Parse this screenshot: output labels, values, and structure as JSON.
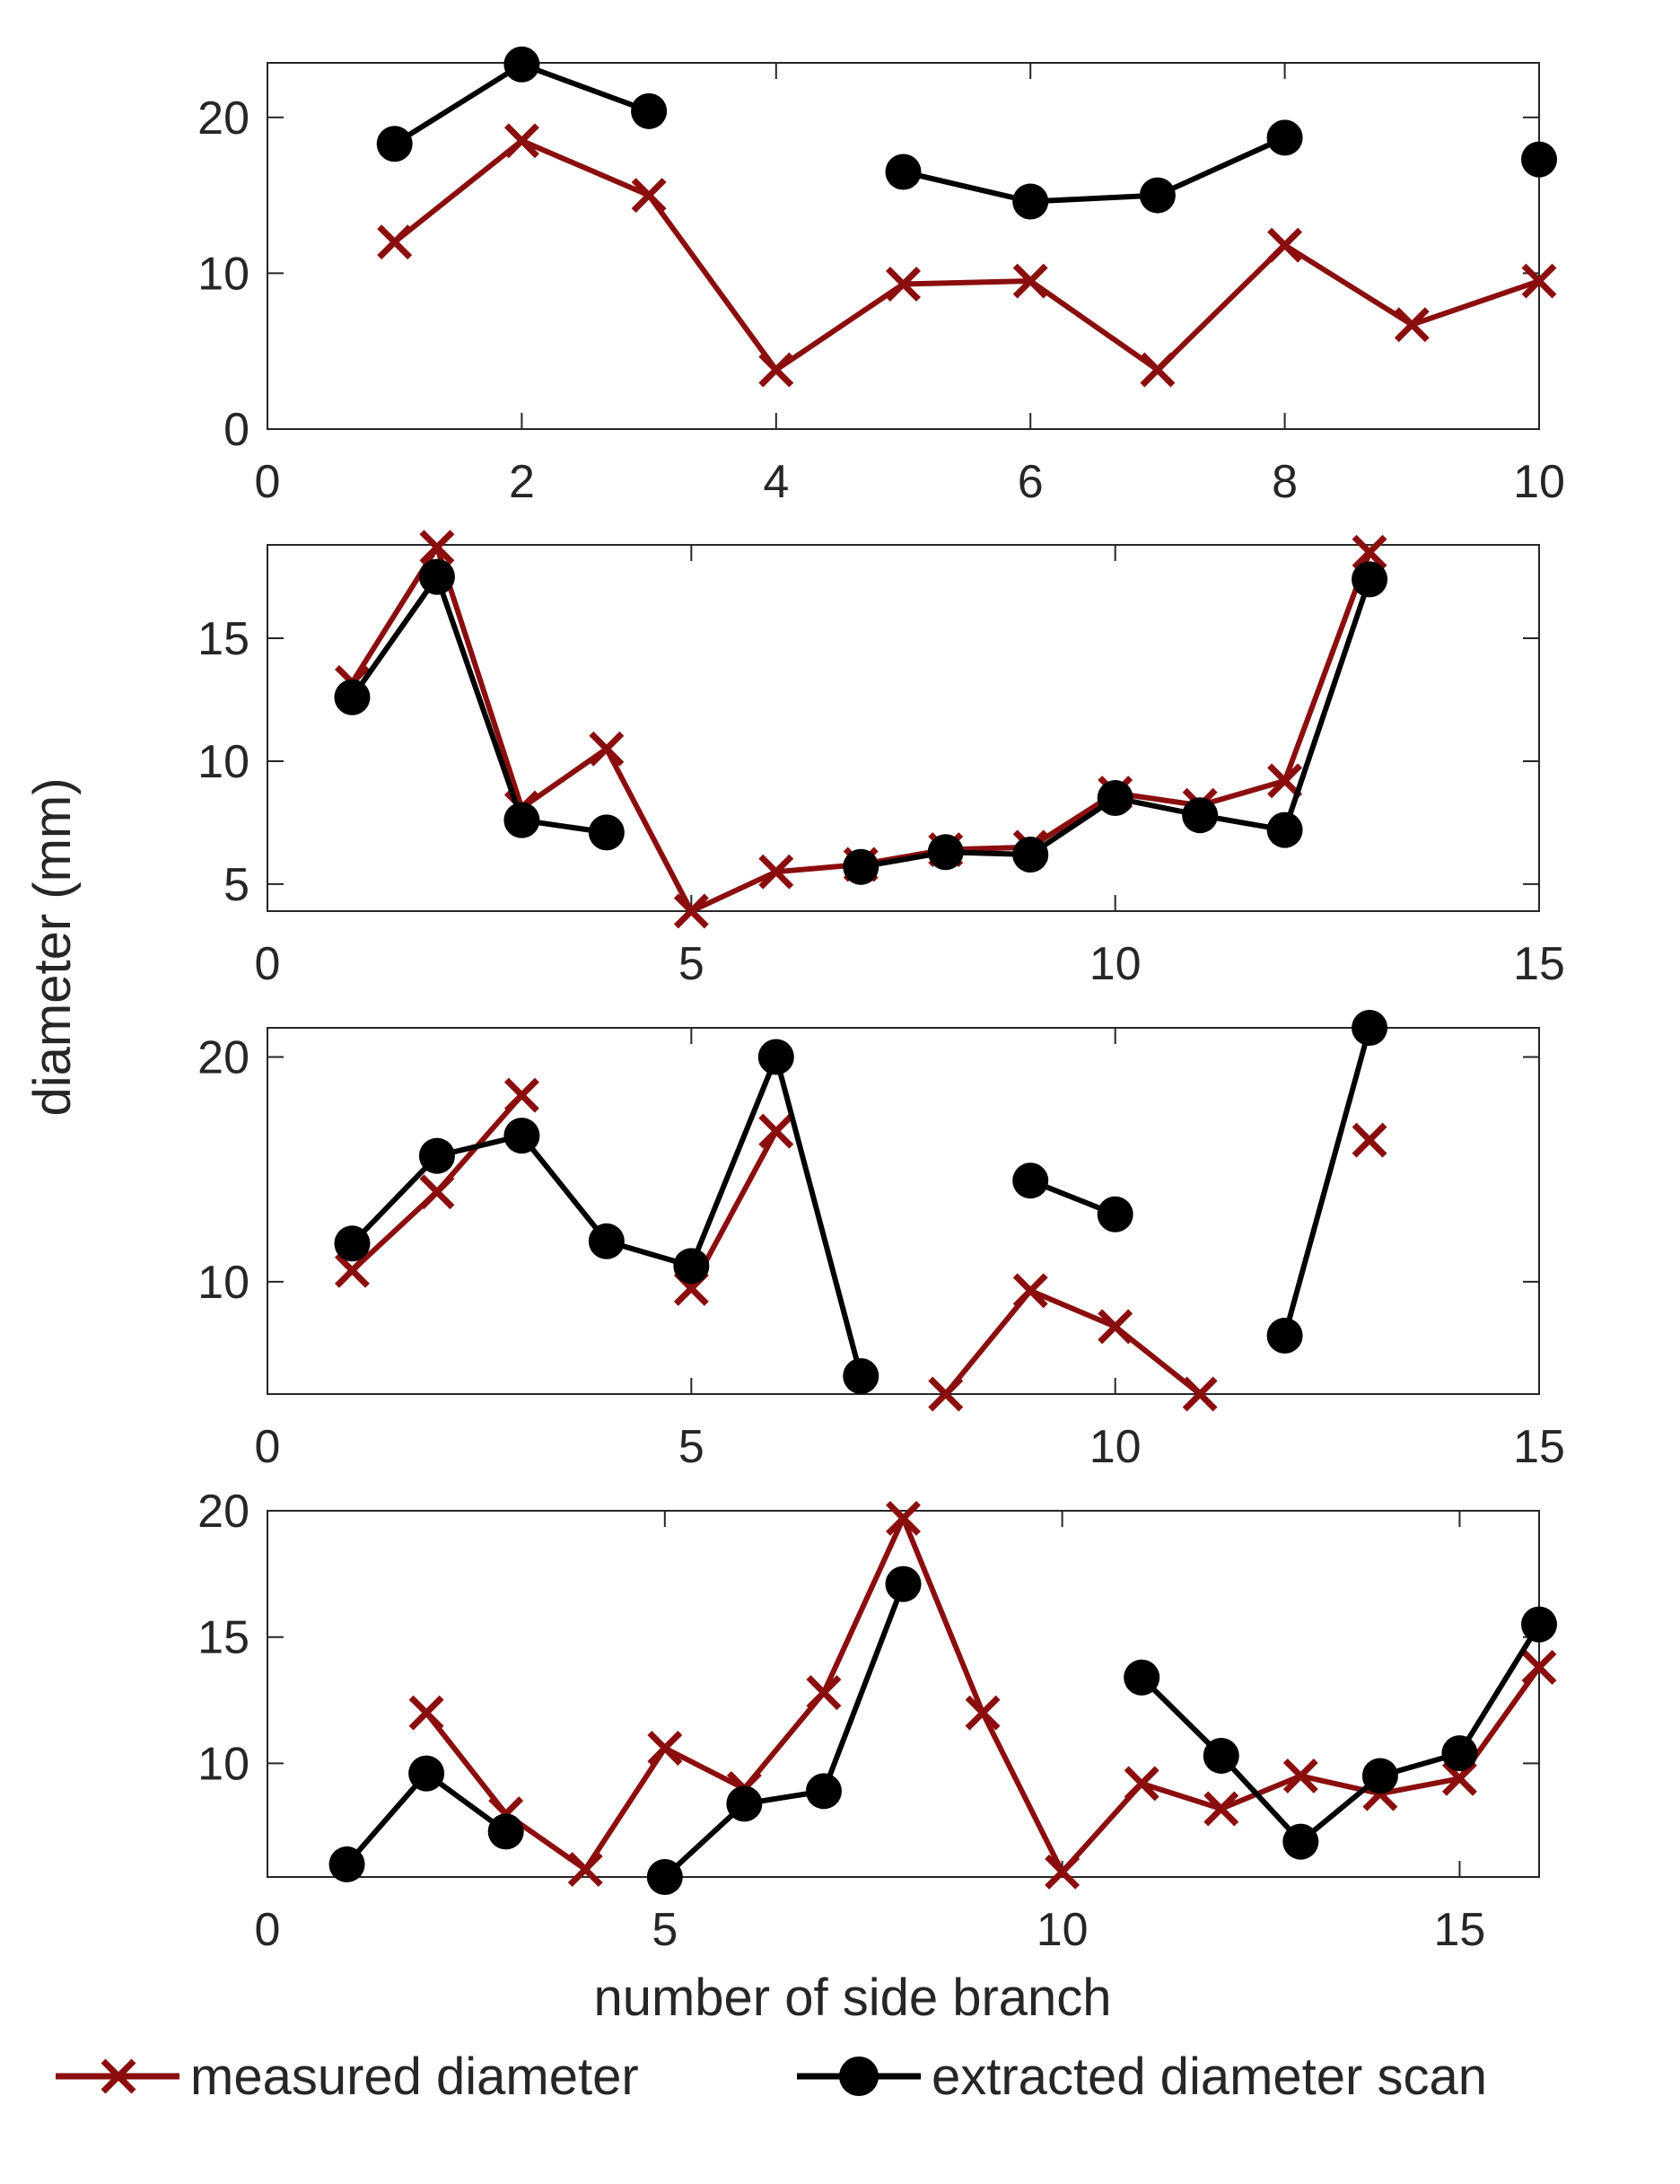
{
  "figure": {
    "ylabel": "diameter (mm)",
    "xlabel": "number of side branch"
  },
  "legend": {
    "placement": "bottom",
    "entries": [
      {
        "name": "measured diameter",
        "color": "#8b0e0e",
        "marker": "cross"
      },
      {
        "name": "extracted diameter scan",
        "color": "#000000",
        "marker": "circle"
      }
    ]
  },
  "colors": {
    "measured": "#8b0e0e",
    "extracted": "#000000",
    "axes": "#262626"
  },
  "chart_data": [
    {
      "type": "line",
      "xlim": [
        0,
        10
      ],
      "ylim": [
        0,
        23.5
      ],
      "xticks": [
        0,
        2,
        4,
        6,
        8,
        10
      ],
      "yticks": [
        0,
        10,
        20
      ],
      "series": [
        {
          "name": "measured diameter",
          "x": [
            1,
            2,
            3,
            4,
            5,
            6,
            7,
            8,
            9,
            10
          ],
          "values": [
            12,
            18.5,
            15,
            3.8,
            9.3,
            9.5,
            3.8,
            11.8,
            6.7,
            9.5
          ]
        },
        {
          "name": "extracted diameter scan",
          "x": [
            1,
            2,
            3,
            4,
            5,
            6,
            7,
            8,
            9,
            10
          ],
          "values": [
            18.3,
            23.4,
            20.4,
            null,
            16.5,
            14.6,
            15,
            18.7,
            null,
            17.3
          ]
        }
      ]
    },
    {
      "type": "line",
      "xlim": [
        0,
        15
      ],
      "ylim": [
        3.9,
        18.8
      ],
      "xticks": [
        0,
        5,
        10,
        15
      ],
      "yticks": [
        5,
        10,
        15
      ],
      "series": [
        {
          "name": "measured diameter",
          "x": [
            1,
            2,
            3,
            4,
            5,
            6,
            7,
            8,
            9,
            10,
            11,
            12,
            13
          ],
          "values": [
            13.2,
            18.7,
            8.1,
            10.5,
            3.9,
            5.5,
            5.8,
            6.4,
            6.5,
            8.7,
            8.2,
            9.2,
            18.5
          ]
        },
        {
          "name": "extracted diameter scan",
          "x": [
            1,
            2,
            3,
            4,
            5,
            6,
            7,
            8,
            9,
            10,
            11,
            12,
            13
          ],
          "values": [
            12.6,
            17.5,
            7.6,
            7.1,
            null,
            null,
            5.7,
            6.3,
            6.2,
            8.5,
            7.8,
            7.2,
            17.4
          ]
        }
      ]
    },
    {
      "type": "line",
      "xlim": [
        0,
        15
      ],
      "ylim": [
        5,
        21.3
      ],
      "xticks": [
        0,
        5,
        10,
        15
      ],
      "yticks": [
        10,
        20
      ],
      "series": [
        {
          "name": "measured diameter",
          "x": [
            1,
            2,
            3,
            4,
            5,
            6,
            7,
            8,
            9,
            10,
            11,
            12,
            13
          ],
          "values": [
            10.5,
            14,
            18.3,
            null,
            9.7,
            16.7,
            null,
            5,
            9.6,
            8,
            5,
            null,
            16.3
          ]
        },
        {
          "name": "extracted diameter scan",
          "x": [
            1,
            2,
            3,
            4,
            5,
            6,
            7,
            8,
            9,
            10,
            11,
            12,
            13
          ],
          "values": [
            11.7,
            15.6,
            16.5,
            11.8,
            10.7,
            20,
            5.8,
            null,
            14.5,
            13,
            null,
            7.6,
            21.3
          ]
        }
      ]
    },
    {
      "type": "line",
      "xlim": [
        0,
        16
      ],
      "ylim": [
        5.5,
        20
      ],
      "xticks": [
        0,
        5,
        10,
        15
      ],
      "yticks": [
        10,
        15,
        20
      ],
      "series": [
        {
          "name": "measured diameter",
          "x": [
            1,
            2,
            3,
            4,
            5,
            6,
            7,
            8,
            9,
            10,
            11,
            12,
            13,
            14,
            15,
            16
          ],
          "values": [
            null,
            12,
            8,
            5.8,
            10.6,
            9,
            12.8,
            19.7,
            12,
            5.7,
            9.2,
            8.2,
            9.5,
            8.8,
            9.4,
            13.8
          ]
        },
        {
          "name": "extracted diameter scan",
          "x": [
            1,
            2,
            3,
            4,
            5,
            6,
            7,
            8,
            9,
            10,
            11,
            12,
            13,
            14,
            15,
            16
          ],
          "values": [
            6,
            9.6,
            7.3,
            null,
            5.5,
            8.4,
            8.9,
            17.1,
            null,
            null,
            13.4,
            10.3,
            6.9,
            9.5,
            10.4,
            15.5
          ]
        }
      ]
    }
  ]
}
